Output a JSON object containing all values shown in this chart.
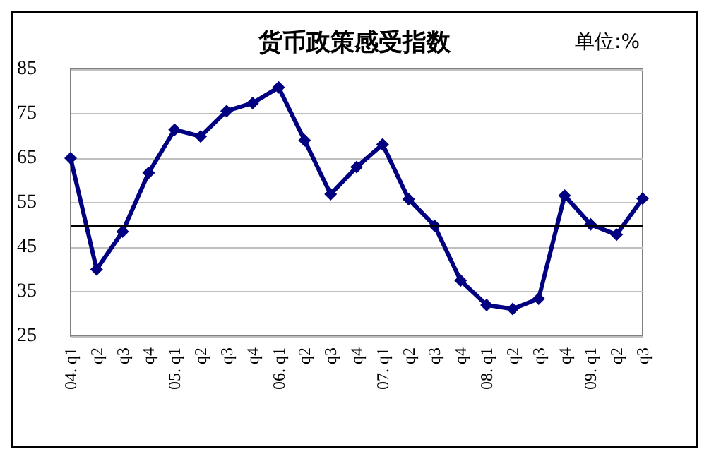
{
  "chart_data": {
    "type": "line",
    "title": "货币政策感受指数",
    "annotations": [
      "单位:%"
    ],
    "categories": [
      "04. q1",
      "q2",
      "q3",
      "q4",
      "05. q1",
      "q2",
      "q3",
      "q4",
      "06. q1",
      "q2",
      "q3",
      "q4",
      "07. q1",
      "q2",
      "q3",
      "q4",
      "08. q1",
      "q2",
      "q3",
      "q4",
      "09. q1",
      "q2",
      "q3"
    ],
    "series": [
      {
        "color": "#000080",
        "values": [
          65,
          40,
          48.5,
          61.7,
          71.4,
          69.9,
          75.6,
          77.4,
          80.9,
          69,
          56.9,
          63,
          68.1,
          55.8,
          49.8,
          37.5,
          32,
          31.1,
          33.4,
          56.6,
          50.1,
          47.8,
          55.9
        ]
      }
    ],
    "ylim": [
      25,
      85
    ],
    "yticks": [
      25,
      35,
      45,
      55,
      65,
      75,
      85
    ],
    "grid": "y",
    "marker": "diamond",
    "line_style": "solid",
    "ref_lines": [
      {
        "axis": "y",
        "value": 50,
        "color": "#000000",
        "line_style": "solid"
      }
    ]
  }
}
